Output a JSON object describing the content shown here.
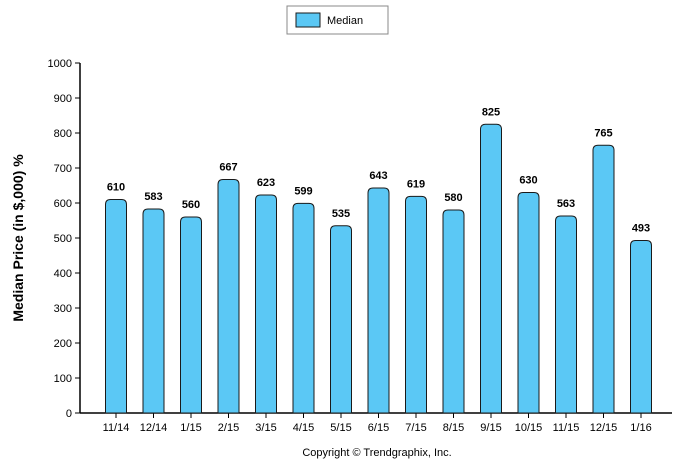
{
  "chart_data": {
    "type": "bar",
    "categories": [
      "11/14",
      "12/14",
      "1/15",
      "2/15",
      "3/15",
      "4/15",
      "5/15",
      "6/15",
      "7/15",
      "8/15",
      "9/15",
      "10/15",
      "11/15",
      "12/15",
      "1/16"
    ],
    "series": [
      {
        "name": "Median",
        "values": [
          610,
          583,
          560,
          667,
          623,
          599,
          535,
          643,
          619,
          580,
          825,
          630,
          563,
          765,
          493
        ]
      }
    ],
    "ylabel": "Median Price (in $,000) %",
    "xlabel": "",
    "ylim": [
      0,
      1000
    ],
    "yticks": [
      0,
      100,
      200,
      300,
      400,
      500,
      600,
      700,
      800,
      900,
      1000
    ],
    "legend_position": "top-center",
    "grid": false,
    "colors": {
      "bar_fill": "#5BC8F5",
      "bar_stroke": "#1A1A1A",
      "axis": "#000000"
    }
  },
  "footer": {
    "copyright": "Copyright © Trendgraphix, Inc."
  }
}
